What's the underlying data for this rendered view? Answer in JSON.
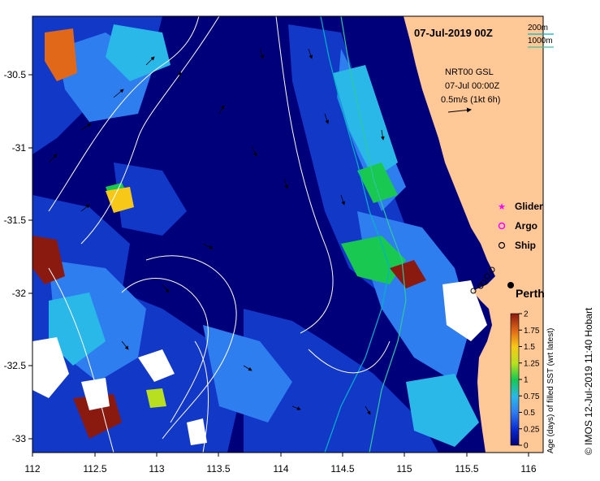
{
  "map": {
    "title": "07-Jul-2019 00Z",
    "product_line1": "NRT00 GSL",
    "product_line2": "07-Jul 00:00Z",
    "velocity_scale": "0.5m/s (1kt 6h)",
    "isobath_labels": [
      "200m",
      "1000m"
    ],
    "legend": [
      {
        "label": "Glider",
        "symbol": "star",
        "color": "#ff00ff"
      },
      {
        "label": "Argo",
        "symbol": "circle",
        "color": "#ff00ff"
      },
      {
        "label": "Ship",
        "symbol": "circle",
        "color": "#000000"
      }
    ],
    "city": "Perth",
    "credit": "© IMOS 12-Jul-2019 11:40 Hobart",
    "colorbar_label": "Age (days) of filled SST (wrt latest)",
    "colorbar_ticks": [
      "0",
      "0.25",
      "0.5",
      "0.75",
      "1",
      "1.25",
      "1.5",
      "1.75",
      "2"
    ],
    "x_ticks": [
      "112",
      "112.5",
      "113",
      "113.5",
      "114",
      "114.5",
      "115",
      "115.5",
      "116"
    ],
    "y_ticks": [
      "-30.5",
      "-31",
      "-31.5",
      "-32",
      "-32.5",
      "-33"
    ],
    "colors": {
      "ocean_deep": "#00007a",
      "land": "#ffc896",
      "isobath_200": "#00b4c8",
      "isobath_1000": "#2ec8a0"
    }
  }
}
